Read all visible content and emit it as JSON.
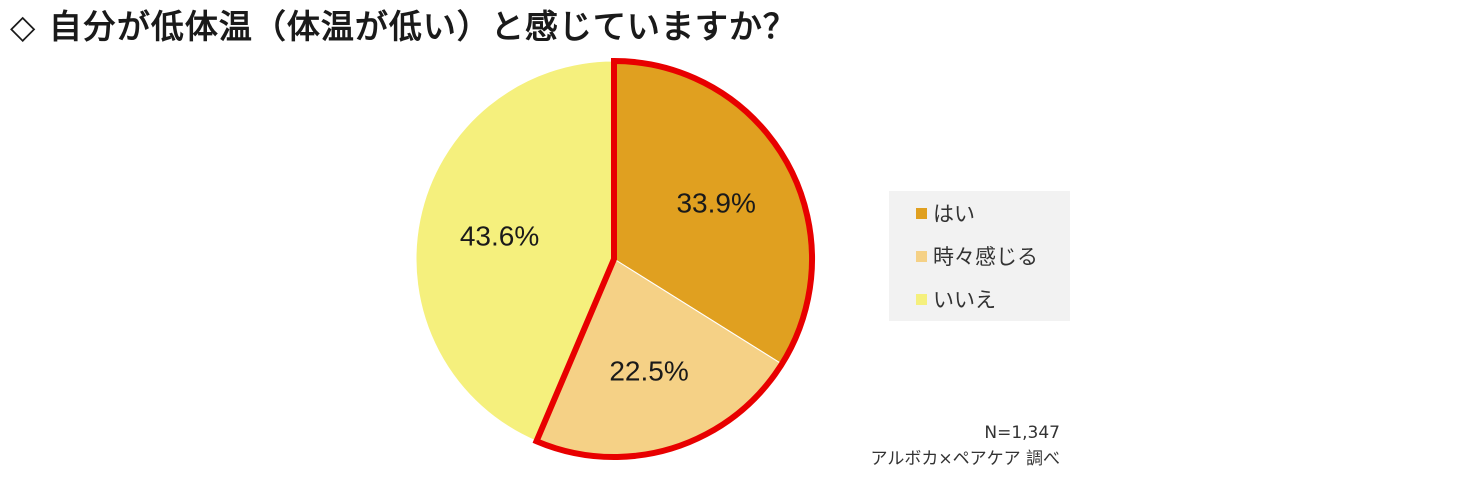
{
  "title": "◇ 自分が低体温（体温が低い）と感じていますか？",
  "chart_data": {
    "type": "pie",
    "title": "",
    "categories": [
      "はい",
      "時々感じる",
      "いいえ"
    ],
    "values": [
      33.9,
      22.5,
      43.6
    ],
    "value_labels": [
      "33.9%",
      "22.5%",
      "43.6%"
    ],
    "colors": [
      "#e0a020",
      "#f5d186",
      "#f5f07d"
    ],
    "highlight": {
      "slices": [
        "はい",
        "時々感じる"
      ],
      "outline_color": "#e80000"
    },
    "start": "12 o'clock, clockwise",
    "legend_placement": "right"
  },
  "legend": {
    "items": [
      {
        "label": "はい",
        "color": "#e0a020"
      },
      {
        "label": "時々感じる",
        "color": "#f5d186"
      },
      {
        "label": "いいえ",
        "color": "#f5f07d"
      }
    ]
  },
  "footnote": {
    "sample_size": "N=1,347",
    "source": "アルボカ×ペアケア 調べ"
  }
}
